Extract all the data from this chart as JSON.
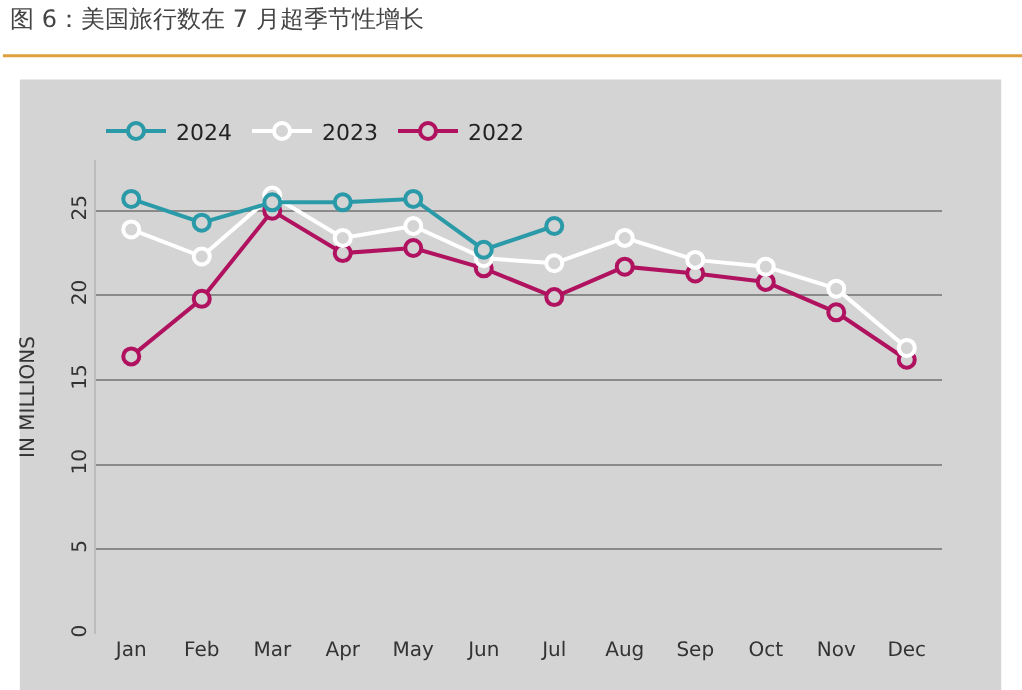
{
  "chart_data": {
    "type": "line",
    "title": "图 6：美国旅行数在 7 月超季节性增长",
    "ylabel": "IN MILLIONS",
    "categories": [
      "Jan",
      "Feb",
      "Mar",
      "Apr",
      "May",
      "Jun",
      "Jul",
      "Aug",
      "Sep",
      "Oct",
      "Nov",
      "Dec"
    ],
    "series": [
      {
        "name": "2024",
        "color": "#2a9aa8",
        "values": [
          25.7,
          24.3,
          25.5,
          25.5,
          25.7,
          22.7,
          24.1,
          null,
          null,
          null,
          null,
          null
        ]
      },
      {
        "name": "2023",
        "color": "#ffffff",
        "values": [
          23.9,
          22.3,
          25.9,
          23.4,
          24.1,
          22.2,
          21.9,
          23.4,
          22.1,
          21.7,
          20.4,
          16.9
        ]
      },
      {
        "name": "2022",
        "color": "#b0125f",
        "values": [
          16.4,
          19.8,
          25.0,
          22.5,
          22.8,
          21.6,
          19.9,
          21.7,
          21.3,
          20.8,
          19.0,
          16.2
        ]
      }
    ],
    "ylim": [
      0,
      28
    ],
    "yticks": [
      0,
      5,
      10,
      15,
      20,
      25
    ],
    "grid": "y",
    "legend": "top left",
    "marker": "circle",
    "line_style": "solid"
  }
}
